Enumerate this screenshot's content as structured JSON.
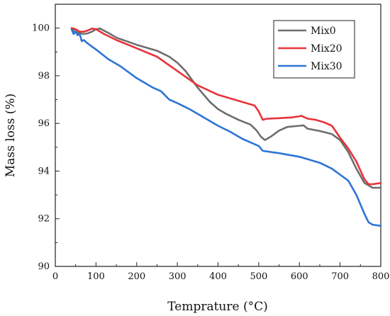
{
  "chart_data": {
    "type": "line",
    "title": "",
    "xlabel": "Temprature (°C)",
    "ylabel": "Mass loss (%)",
    "xlim": [
      0,
      800
    ],
    "ylim": [
      90,
      101
    ],
    "xticks": [
      0,
      100,
      200,
      300,
      400,
      500,
      600,
      700,
      800
    ],
    "xtick_labels": [
      "0",
      "100",
      "200",
      "300",
      "400",
      "500",
      "600",
      "700",
      "800"
    ],
    "yticks": [
      90,
      92,
      94,
      96,
      98,
      100
    ],
    "ytick_labels": [
      "90",
      "92",
      "94",
      "96",
      "98",
      "100"
    ],
    "grid": false,
    "legend_position": "top-right",
    "series": [
      {
        "name": "Mix0",
        "color": "#6e6e6e",
        "x": [
          40,
          50,
          60,
          70,
          80,
          90,
          100,
          110,
          130,
          150,
          200,
          250,
          280,
          300,
          320,
          350,
          380,
          400,
          420,
          450,
          480,
          495,
          505,
          515,
          530,
          550,
          570,
          600,
          610,
          620,
          650,
          680,
          700,
          720,
          740,
          760,
          780,
          800
        ],
        "y": [
          99.95,
          99.85,
          99.78,
          99.75,
          99.78,
          99.85,
          99.95,
          99.98,
          99.8,
          99.6,
          99.3,
          99.05,
          98.8,
          98.55,
          98.2,
          97.5,
          96.9,
          96.6,
          96.4,
          96.15,
          95.95,
          95.7,
          95.45,
          95.3,
          95.45,
          95.7,
          95.85,
          95.9,
          95.92,
          95.78,
          95.68,
          95.55,
          95.3,
          94.8,
          94.1,
          93.5,
          93.3,
          93.3
        ]
      },
      {
        "name": "Mix20",
        "color": "#e8333a",
        "x": [
          40,
          50,
          60,
          70,
          80,
          90,
          100,
          120,
          150,
          200,
          250,
          300,
          350,
          400,
          450,
          490,
          500,
          510,
          520,
          550,
          580,
          600,
          605,
          610,
          620,
          640,
          660,
          680,
          700,
          720,
          740,
          760,
          770,
          780,
          800
        ],
        "y": [
          100.0,
          99.95,
          99.85,
          99.85,
          99.9,
          99.98,
          99.95,
          99.75,
          99.5,
          99.15,
          98.8,
          98.2,
          97.6,
          97.2,
          96.95,
          96.75,
          96.5,
          96.15,
          96.2,
          96.22,
          96.25,
          96.3,
          96.32,
          96.28,
          96.2,
          96.15,
          96.05,
          95.9,
          95.4,
          94.95,
          94.4,
          93.65,
          93.45,
          93.45,
          93.5
        ]
      },
      {
        "name": "Mix30",
        "color": "#2e74d6",
        "x": [
          40,
          45,
          50,
          55,
          60,
          65,
          70,
          80,
          100,
          130,
          160,
          200,
          240,
          260,
          280,
          300,
          330,
          360,
          400,
          430,
          460,
          480,
          500,
          510,
          550,
          600,
          650,
          680,
          700,
          720,
          740,
          760,
          770,
          780,
          800
        ],
        "y": [
          99.95,
          99.75,
          99.85,
          99.7,
          99.75,
          99.45,
          99.5,
          99.35,
          99.1,
          98.7,
          98.4,
          97.9,
          97.5,
          97.35,
          97.0,
          96.85,
          96.6,
          96.3,
          95.9,
          95.65,
          95.35,
          95.2,
          95.05,
          94.85,
          94.75,
          94.6,
          94.35,
          94.1,
          93.85,
          93.6,
          93.0,
          92.2,
          91.85,
          91.75,
          91.7
        ]
      }
    ]
  }
}
